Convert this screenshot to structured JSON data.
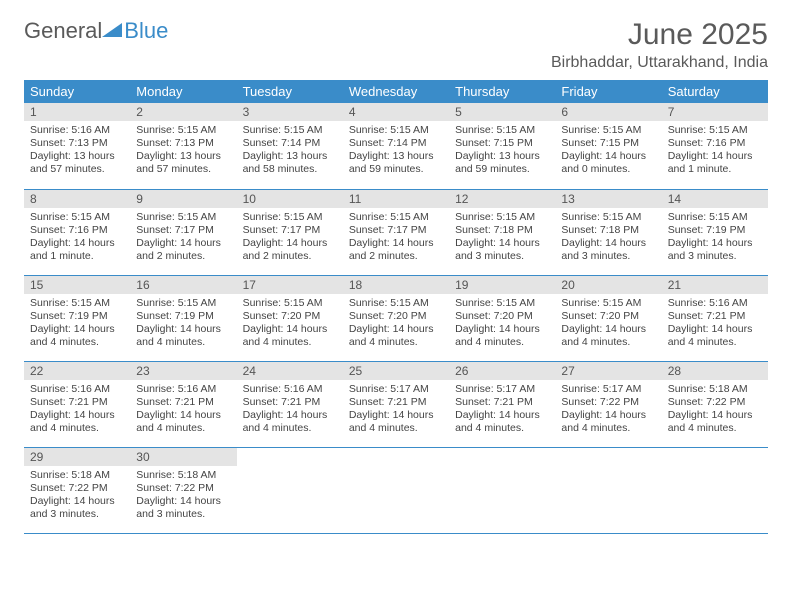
{
  "brand": {
    "name_a": "General",
    "name_b": "Blue"
  },
  "title": "June 2025",
  "location": "Birbhaddar, Uttarakhand, India",
  "colors": {
    "header_bg": "#3a8cc9",
    "daynum_bg": "#e4e4e4",
    "text": "#444444",
    "title_text": "#5a5a5a"
  },
  "weekdays": [
    "Sunday",
    "Monday",
    "Tuesday",
    "Wednesday",
    "Thursday",
    "Friday",
    "Saturday"
  ],
  "weeks": [
    [
      {
        "n": "1",
        "sunrise": "Sunrise: 5:16 AM",
        "sunset": "Sunset: 7:13 PM",
        "day": "Daylight: 13 hours and 57 minutes."
      },
      {
        "n": "2",
        "sunrise": "Sunrise: 5:15 AM",
        "sunset": "Sunset: 7:13 PM",
        "day": "Daylight: 13 hours and 57 minutes."
      },
      {
        "n": "3",
        "sunrise": "Sunrise: 5:15 AM",
        "sunset": "Sunset: 7:14 PM",
        "day": "Daylight: 13 hours and 58 minutes."
      },
      {
        "n": "4",
        "sunrise": "Sunrise: 5:15 AM",
        "sunset": "Sunset: 7:14 PM",
        "day": "Daylight: 13 hours and 59 minutes."
      },
      {
        "n": "5",
        "sunrise": "Sunrise: 5:15 AM",
        "sunset": "Sunset: 7:15 PM",
        "day": "Daylight: 13 hours and 59 minutes."
      },
      {
        "n": "6",
        "sunrise": "Sunrise: 5:15 AM",
        "sunset": "Sunset: 7:15 PM",
        "day": "Daylight: 14 hours and 0 minutes."
      },
      {
        "n": "7",
        "sunrise": "Sunrise: 5:15 AM",
        "sunset": "Sunset: 7:16 PM",
        "day": "Daylight: 14 hours and 1 minute."
      }
    ],
    [
      {
        "n": "8",
        "sunrise": "Sunrise: 5:15 AM",
        "sunset": "Sunset: 7:16 PM",
        "day": "Daylight: 14 hours and 1 minute."
      },
      {
        "n": "9",
        "sunrise": "Sunrise: 5:15 AM",
        "sunset": "Sunset: 7:17 PM",
        "day": "Daylight: 14 hours and 2 minutes."
      },
      {
        "n": "10",
        "sunrise": "Sunrise: 5:15 AM",
        "sunset": "Sunset: 7:17 PM",
        "day": "Daylight: 14 hours and 2 minutes."
      },
      {
        "n": "11",
        "sunrise": "Sunrise: 5:15 AM",
        "sunset": "Sunset: 7:17 PM",
        "day": "Daylight: 14 hours and 2 minutes."
      },
      {
        "n": "12",
        "sunrise": "Sunrise: 5:15 AM",
        "sunset": "Sunset: 7:18 PM",
        "day": "Daylight: 14 hours and 3 minutes."
      },
      {
        "n": "13",
        "sunrise": "Sunrise: 5:15 AM",
        "sunset": "Sunset: 7:18 PM",
        "day": "Daylight: 14 hours and 3 minutes."
      },
      {
        "n": "14",
        "sunrise": "Sunrise: 5:15 AM",
        "sunset": "Sunset: 7:19 PM",
        "day": "Daylight: 14 hours and 3 minutes."
      }
    ],
    [
      {
        "n": "15",
        "sunrise": "Sunrise: 5:15 AM",
        "sunset": "Sunset: 7:19 PM",
        "day": "Daylight: 14 hours and 4 minutes."
      },
      {
        "n": "16",
        "sunrise": "Sunrise: 5:15 AM",
        "sunset": "Sunset: 7:19 PM",
        "day": "Daylight: 14 hours and 4 minutes."
      },
      {
        "n": "17",
        "sunrise": "Sunrise: 5:15 AM",
        "sunset": "Sunset: 7:20 PM",
        "day": "Daylight: 14 hours and 4 minutes."
      },
      {
        "n": "18",
        "sunrise": "Sunrise: 5:15 AM",
        "sunset": "Sunset: 7:20 PM",
        "day": "Daylight: 14 hours and 4 minutes."
      },
      {
        "n": "19",
        "sunrise": "Sunrise: 5:15 AM",
        "sunset": "Sunset: 7:20 PM",
        "day": "Daylight: 14 hours and 4 minutes."
      },
      {
        "n": "20",
        "sunrise": "Sunrise: 5:15 AM",
        "sunset": "Sunset: 7:20 PM",
        "day": "Daylight: 14 hours and 4 minutes."
      },
      {
        "n": "21",
        "sunrise": "Sunrise: 5:16 AM",
        "sunset": "Sunset: 7:21 PM",
        "day": "Daylight: 14 hours and 4 minutes."
      }
    ],
    [
      {
        "n": "22",
        "sunrise": "Sunrise: 5:16 AM",
        "sunset": "Sunset: 7:21 PM",
        "day": "Daylight: 14 hours and 4 minutes."
      },
      {
        "n": "23",
        "sunrise": "Sunrise: 5:16 AM",
        "sunset": "Sunset: 7:21 PM",
        "day": "Daylight: 14 hours and 4 minutes."
      },
      {
        "n": "24",
        "sunrise": "Sunrise: 5:16 AM",
        "sunset": "Sunset: 7:21 PM",
        "day": "Daylight: 14 hours and 4 minutes."
      },
      {
        "n": "25",
        "sunrise": "Sunrise: 5:17 AM",
        "sunset": "Sunset: 7:21 PM",
        "day": "Daylight: 14 hours and 4 minutes."
      },
      {
        "n": "26",
        "sunrise": "Sunrise: 5:17 AM",
        "sunset": "Sunset: 7:21 PM",
        "day": "Daylight: 14 hours and 4 minutes."
      },
      {
        "n": "27",
        "sunrise": "Sunrise: 5:17 AM",
        "sunset": "Sunset: 7:22 PM",
        "day": "Daylight: 14 hours and 4 minutes."
      },
      {
        "n": "28",
        "sunrise": "Sunrise: 5:18 AM",
        "sunset": "Sunset: 7:22 PM",
        "day": "Daylight: 14 hours and 4 minutes."
      }
    ],
    [
      {
        "n": "29",
        "sunrise": "Sunrise: 5:18 AM",
        "sunset": "Sunset: 7:22 PM",
        "day": "Daylight: 14 hours and 3 minutes."
      },
      {
        "n": "30",
        "sunrise": "Sunrise: 5:18 AM",
        "sunset": "Sunset: 7:22 PM",
        "day": "Daylight: 14 hours and 3 minutes."
      },
      {
        "empty": true
      },
      {
        "empty": true
      },
      {
        "empty": true
      },
      {
        "empty": true
      },
      {
        "empty": true
      }
    ]
  ]
}
